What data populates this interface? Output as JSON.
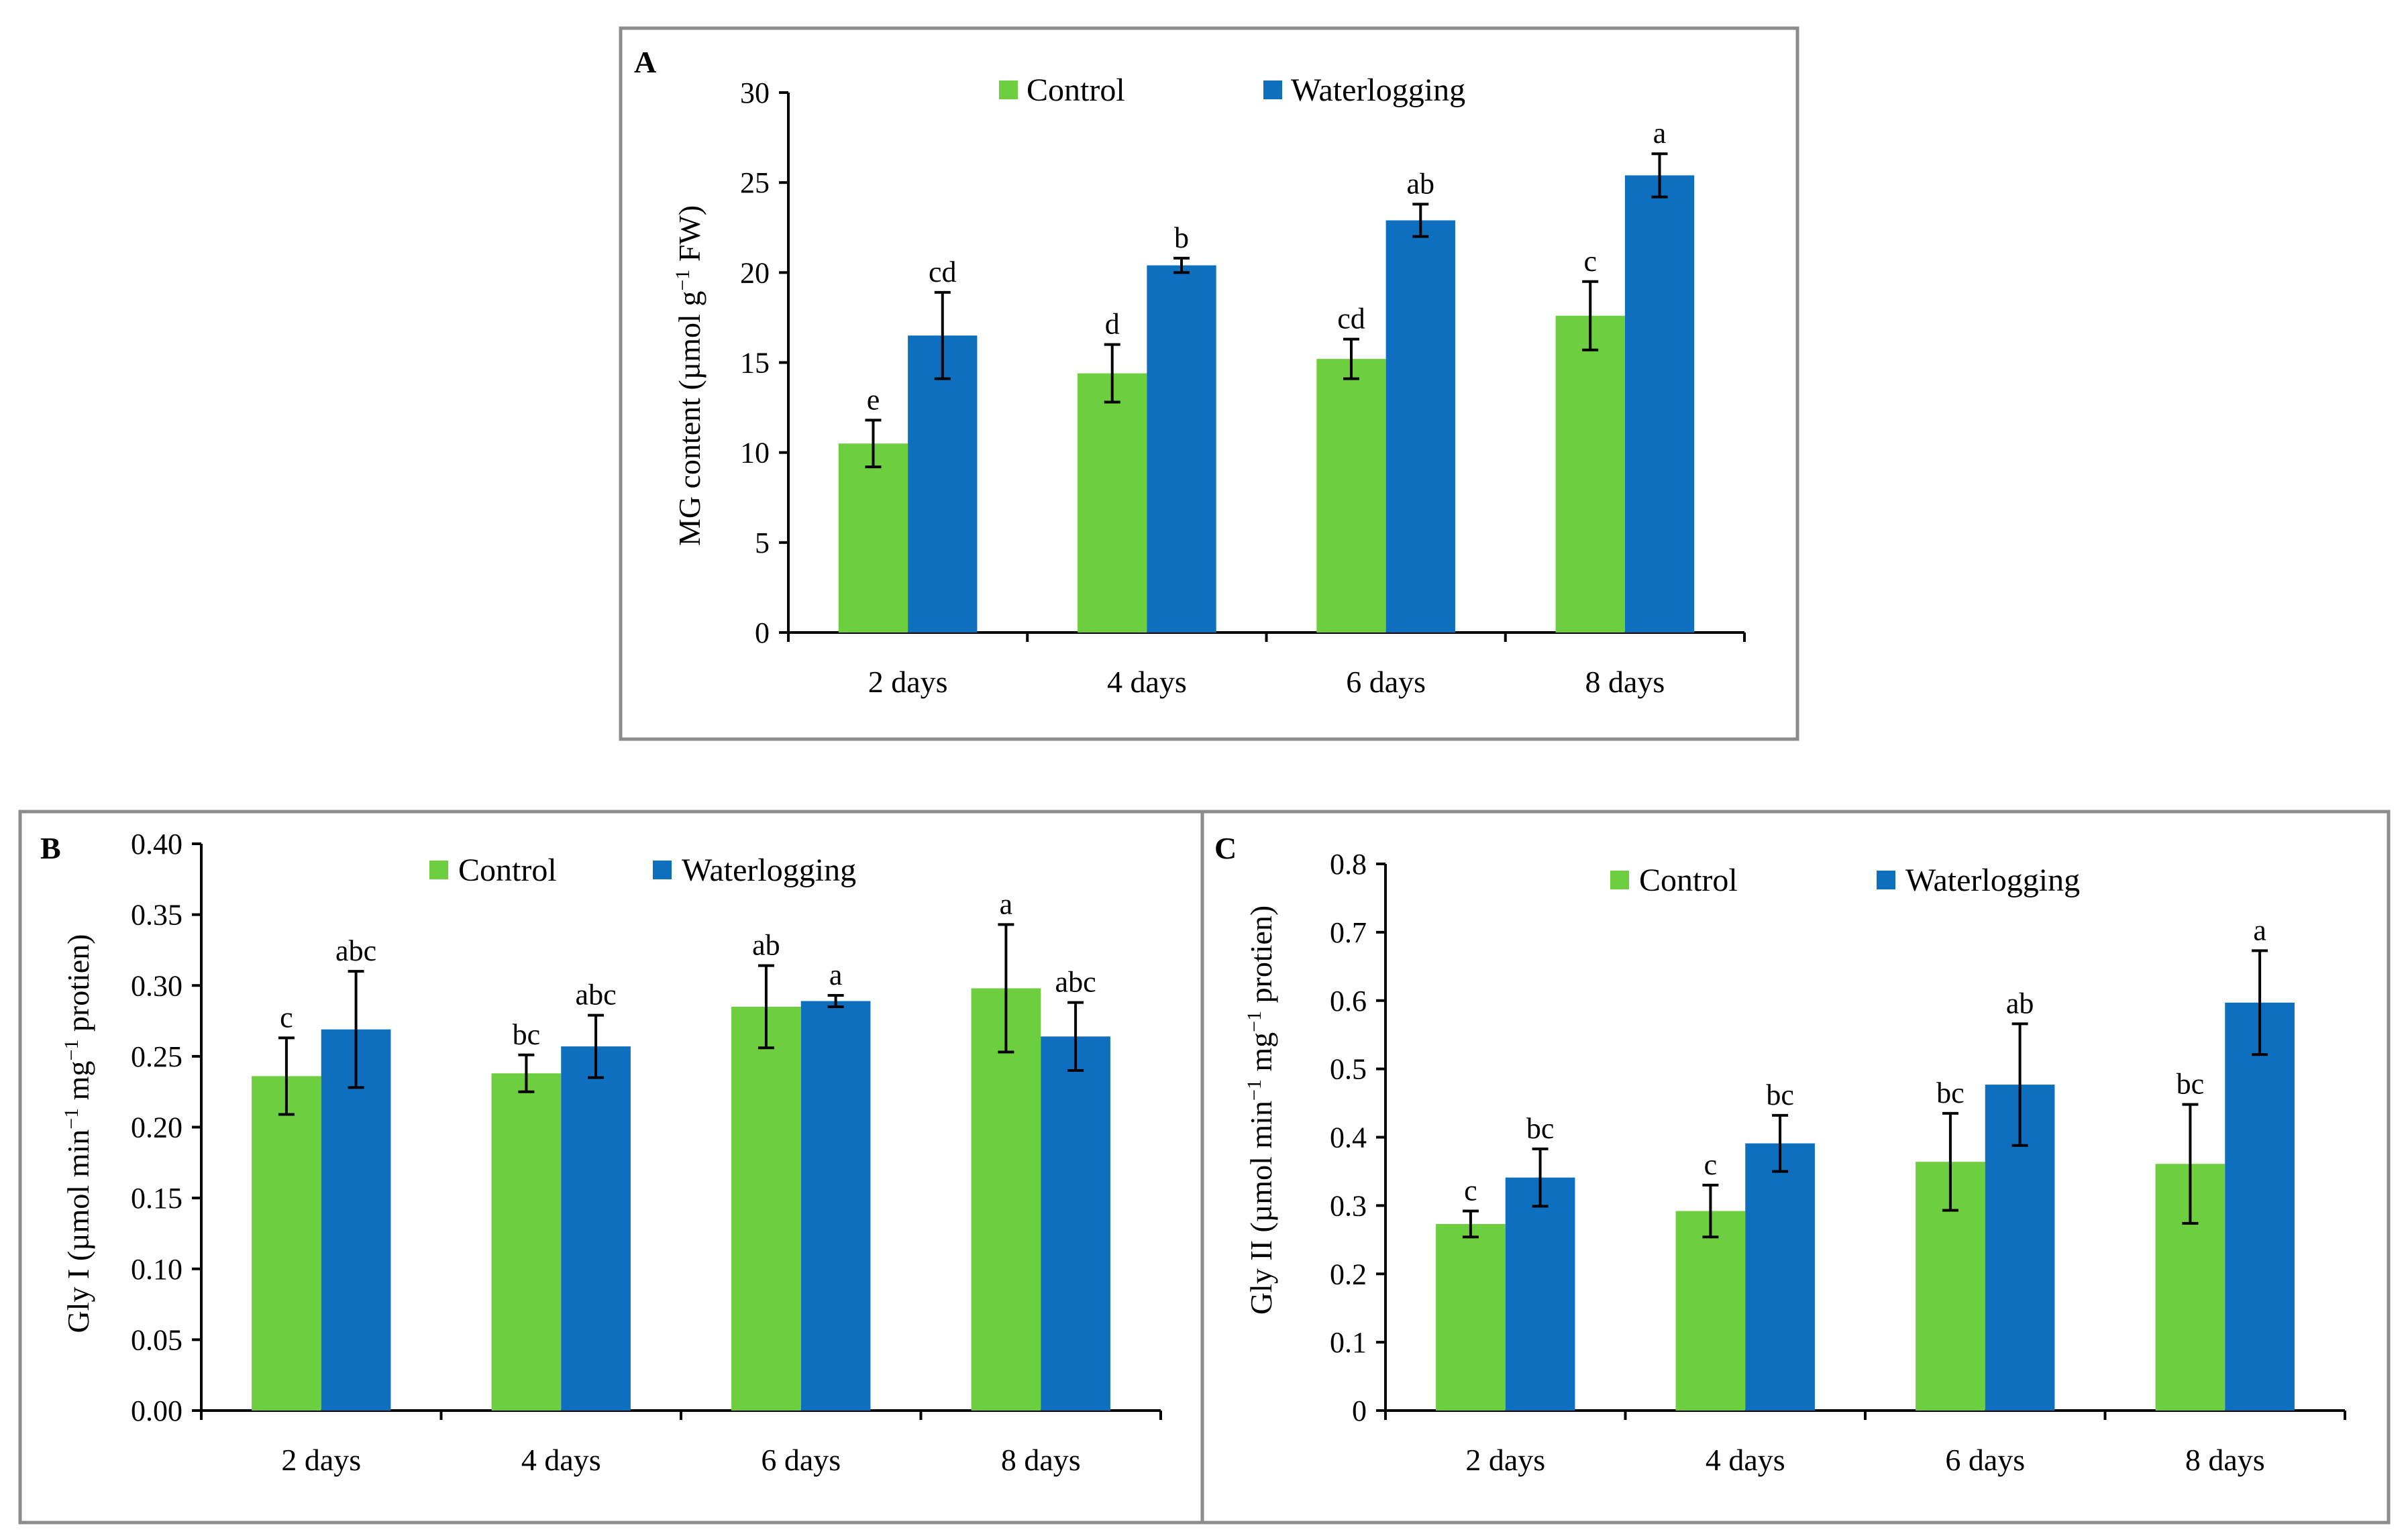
{
  "figure": {
    "panels": [
      {
        "letter": "A",
        "ylabel_main": "MG content (µmol g",
        "ylabel_sup": "−1",
        "ylabel_end": " FW)",
        "legend": [
          "Control",
          "Waterlogging"
        ]
      },
      {
        "letter": "B",
        "ylabel_main": "Gly I (µmol min",
        "ylabel_sup": "−1",
        "ylabel_mid": " mg",
        "ylabel_sup2": "−1",
        "ylabel_end": " protien)",
        "legend": [
          "Control",
          "Waterlogging"
        ]
      },
      {
        "letter": "C",
        "ylabel_main": "Gly II (µmol min",
        "ylabel_sup": "−1",
        "ylabel_mid": " mg",
        "ylabel_sup2": "−1",
        "ylabel_end": " protien)",
        "legend": [
          "Control",
          "Waterlogging"
        ]
      }
    ]
  },
  "colors": {
    "control": "#6dcf3f",
    "waterlogging": "#0f6fbf"
  },
  "chart_data": [
    {
      "type": "bar",
      "panel": "A",
      "categories": [
        "2 days",
        "4 days",
        "6 days",
        "8 days"
      ],
      "ylim": [
        0,
        30
      ],
      "yticks": [
        "0",
        "5",
        "10",
        "15",
        "20",
        "25",
        "30"
      ],
      "series": [
        {
          "name": "Control",
          "values": [
            10.5,
            14.4,
            15.2,
            17.6
          ],
          "errors": [
            1.3,
            1.6,
            1.1,
            1.9
          ],
          "labels": [
            "e",
            "d",
            "cd",
            "c"
          ]
        },
        {
          "name": "Waterlogging",
          "values": [
            16.5,
            20.4,
            22.9,
            25.4
          ],
          "errors": [
            2.4,
            0.4,
            0.9,
            1.2
          ],
          "labels": [
            "cd",
            "b",
            "ab",
            "a"
          ]
        }
      ]
    },
    {
      "type": "bar",
      "panel": "B",
      "categories": [
        "2 days",
        "4 days",
        "6 days",
        "8 days"
      ],
      "ylim": [
        0,
        0.4
      ],
      "yticks": [
        "0.00",
        "0.05",
        "0.10",
        "0.15",
        "0.20",
        "0.25",
        "0.30",
        "0.35",
        "0.40"
      ],
      "series": [
        {
          "name": "Control",
          "values": [
            0.236,
            0.238,
            0.285,
            0.298
          ],
          "errors": [
            0.027,
            0.013,
            0.029,
            0.045
          ],
          "labels": [
            "c",
            "bc",
            "ab",
            "a"
          ]
        },
        {
          "name": "Waterlogging",
          "values": [
            0.269,
            0.257,
            0.289,
            0.264
          ],
          "errors": [
            0.041,
            0.022,
            0.004,
            0.024
          ],
          "labels": [
            "abc",
            "abc",
            "a",
            "abc"
          ]
        }
      ]
    },
    {
      "type": "bar",
      "panel": "C",
      "categories": [
        "2 days",
        "4 days",
        "6 days",
        "8 days"
      ],
      "ylim": [
        0,
        0.8
      ],
      "yticks": [
        "0",
        "0.1",
        "0.2",
        "0.3",
        "0.4",
        "0.5",
        "0.6",
        "0.7",
        "0.8"
      ],
      "series": [
        {
          "name": "Control",
          "values": [
            0.273,
            0.292,
            0.364,
            0.361
          ],
          "errors": [
            0.019,
            0.038,
            0.071,
            0.087
          ],
          "labels": [
            "c",
            "c",
            "bc",
            "bc"
          ]
        },
        {
          "name": "Waterlogging",
          "values": [
            0.341,
            0.391,
            0.477,
            0.597
          ],
          "errors": [
            0.042,
            0.041,
            0.089,
            0.076
          ],
          "labels": [
            "bc",
            "bc",
            "ab",
            "a"
          ]
        }
      ]
    }
  ]
}
